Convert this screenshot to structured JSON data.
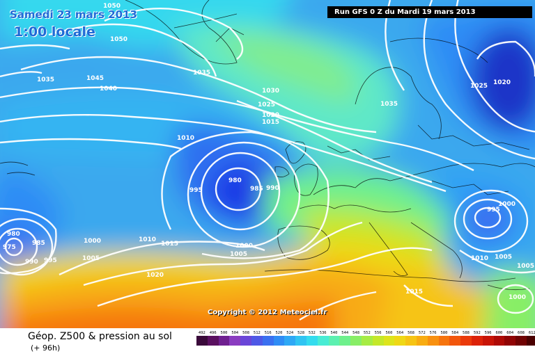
{
  "header": {
    "date": "Samedi 23 mars 2013",
    "time": "1:00 locale",
    "run": "Run GFS 0 Z du Mardi 19 mars 2013"
  },
  "footer": {
    "title": "Géop. Z500 & pression au sol",
    "lead": "(+ 96h)",
    "copyright": "Copyright © 2012 Meteociel.fr"
  },
  "scale": {
    "labels": [
      "492",
      "496",
      "500",
      "504",
      "508",
      "512",
      "516",
      "520",
      "524",
      "528",
      "532",
      "536",
      "540",
      "544",
      "548",
      "552",
      "556",
      "560",
      "564",
      "568",
      "572",
      "576",
      "580",
      "584",
      "588",
      "592",
      "596",
      "600",
      "604",
      "608",
      "612"
    ],
    "colors": [
      "#3a0a3a",
      "#5a1060",
      "#6f2090",
      "#8a3cc0",
      "#6a46d8",
      "#4e58e6",
      "#3a70f0",
      "#2f8cf5",
      "#2ea8f5",
      "#30c4f2",
      "#34dcee",
      "#48ecd4",
      "#5cf0b0",
      "#6ef08c",
      "#88ee66",
      "#a6ec44",
      "#c4e82a",
      "#dde41c",
      "#efd816",
      "#f6c414",
      "#f8ac12",
      "#f89010",
      "#f6740e",
      "#f2560c",
      "#ea3a0a",
      "#dc2208",
      "#c81406",
      "#ae0a05",
      "#900404",
      "#700202",
      "#4a0000"
    ]
  },
  "isobar_labels": [
    "1050",
    "1050",
    "1045",
    "1040",
    "1035",
    "1035",
    "1030",
    "1025",
    "1020",
    "1015",
    "1010",
    "1035",
    "1025",
    "1020",
    "980",
    "985",
    "990",
    "995",
    "1000",
    "1005",
    "980",
    "985",
    "975",
    "990",
    "995",
    "1000",
    "1005",
    "1010",
    "1015",
    "1020",
    "995",
    "1000",
    "1010",
    "1005",
    "1005",
    "1000",
    "1015"
  ]
}
